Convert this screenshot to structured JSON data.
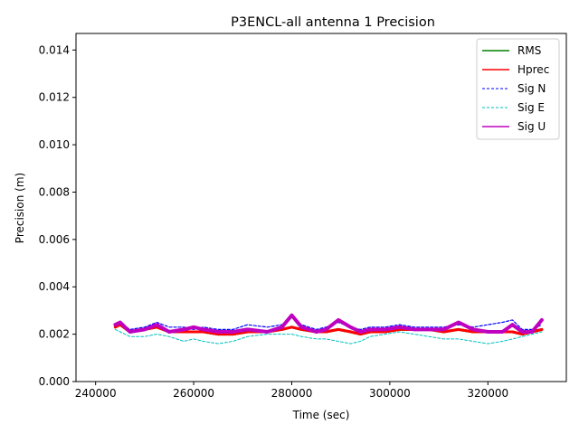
{
  "chart_data": {
    "type": "line",
    "title": "P3ENCL-all antenna 1 Precision",
    "xlabel": "Time (sec)",
    "ylabel": "Precision (m)",
    "xlim": [
      236000,
      336000
    ],
    "ylim": [
      0,
      0.0147
    ],
    "x_ticks": [
      240000,
      260000,
      280000,
      300000,
      320000
    ],
    "y_ticks": [
      0.0,
      0.002,
      0.004,
      0.006,
      0.008,
      0.01,
      0.012,
      0.014
    ],
    "x_tick_labels": [
      "240000",
      "260000",
      "280000",
      "300000",
      "320000"
    ],
    "y_tick_labels": [
      "0.000",
      "0.002",
      "0.004",
      "0.006",
      "0.008",
      "0.010",
      "0.012",
      "0.014"
    ],
    "legend_position": "top-right",
    "grid": false,
    "x": [
      244000,
      245000,
      247000,
      250000,
      252500,
      255000,
      258000,
      260000,
      262000,
      265000,
      268000,
      271000,
      275000,
      278000,
      280000,
      282000,
      285000,
      287000,
      289500,
      292000,
      294000,
      296000,
      299000,
      302000,
      305000,
      308000,
      311000,
      314000,
      317000,
      320000,
      323000,
      325000,
      327000,
      329000,
      331000
    ],
    "series": [
      {
        "name": "RMS",
        "color": "#008000",
        "style": "solid",
        "values": [
          0.0023,
          0.0024,
          0.0021,
          0.0022,
          0.0023,
          0.0021,
          0.0021,
          0.0021,
          0.0021,
          0.002,
          0.002,
          0.0021,
          0.0021,
          0.0022,
          0.0023,
          0.0022,
          0.0021,
          0.0021,
          0.0022,
          0.0021,
          0.002,
          0.0021,
          0.0021,
          0.0022,
          0.0022,
          0.0022,
          0.0021,
          0.0022,
          0.0021,
          0.0021,
          0.0021,
          0.0021,
          0.002,
          0.0021,
          0.0022
        ]
      },
      {
        "name": "Hprec",
        "color": "#ff0000",
        "style": "solid",
        "values": [
          0.0023,
          0.0024,
          0.0021,
          0.0022,
          0.0023,
          0.0021,
          0.0021,
          0.0021,
          0.0021,
          0.002,
          0.002,
          0.0021,
          0.0021,
          0.0022,
          0.0023,
          0.0022,
          0.0021,
          0.0021,
          0.0022,
          0.0021,
          0.002,
          0.0021,
          0.0021,
          0.0022,
          0.0022,
          0.0022,
          0.0021,
          0.0022,
          0.0021,
          0.0021,
          0.0021,
          0.0021,
          0.002,
          0.0021,
          0.0022
        ]
      },
      {
        "name": "Sig N",
        "color": "#0000ff",
        "style": "dashed",
        "values": [
          0.0024,
          0.0025,
          0.0022,
          0.0023,
          0.0025,
          0.0023,
          0.0023,
          0.0022,
          0.0023,
          0.0022,
          0.0022,
          0.0024,
          0.0023,
          0.0024,
          0.0027,
          0.0024,
          0.0022,
          0.0023,
          0.0025,
          0.0023,
          0.0022,
          0.0023,
          0.0023,
          0.0024,
          0.0023,
          0.0023,
          0.0023,
          0.0024,
          0.0023,
          0.0024,
          0.0025,
          0.0026,
          0.0022,
          0.0022,
          0.0024
        ]
      },
      {
        "name": "Sig E",
        "color": "#00bfbf",
        "style": "dashed",
        "values": [
          0.0022,
          0.0021,
          0.0019,
          0.0019,
          0.002,
          0.0019,
          0.0017,
          0.0018,
          0.0017,
          0.0016,
          0.0017,
          0.0019,
          0.002,
          0.002,
          0.002,
          0.0019,
          0.0018,
          0.0018,
          0.0017,
          0.0016,
          0.0017,
          0.0019,
          0.002,
          0.0021,
          0.002,
          0.0019,
          0.0018,
          0.0018,
          0.0017,
          0.0016,
          0.0017,
          0.0018,
          0.0019,
          0.002,
          0.0021
        ]
      },
      {
        "name": "Sig U",
        "color": "#bf00bf",
        "style": "solid",
        "values": [
          0.0024,
          0.0025,
          0.0021,
          0.0022,
          0.0024,
          0.0021,
          0.0022,
          0.0023,
          0.0022,
          0.0021,
          0.0021,
          0.0022,
          0.0021,
          0.0023,
          0.0028,
          0.0023,
          0.0021,
          0.0022,
          0.0026,
          0.0023,
          0.0021,
          0.0022,
          0.0022,
          0.0023,
          0.0022,
          0.0022,
          0.0022,
          0.0025,
          0.0022,
          0.0021,
          0.0021,
          0.0024,
          0.0021,
          0.0021,
          0.0026
        ]
      }
    ]
  }
}
